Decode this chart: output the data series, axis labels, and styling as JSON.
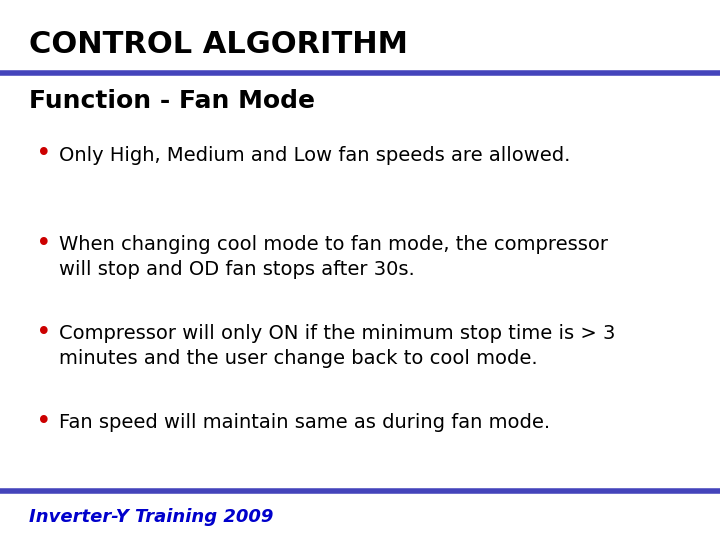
{
  "title": "CONTROL ALGORITHM",
  "subtitle": "Function - Fan Mode",
  "bullets": [
    "Only High, Medium and Low fan speeds are allowed.",
    "When changing cool mode to fan mode, the compressor\nwill stop and OD fan stops after 30s.",
    "Compressor will only ON if the minimum stop time is > 3\nminutes and the user change back to cool mode.",
    "Fan speed will maintain same as during fan mode."
  ],
  "footer": "Inverter-Y Training 2009",
  "bg_color": "#ffffff",
  "title_color": "#000000",
  "subtitle_color": "#000000",
  "bullet_color": "#000000",
  "bullet_dot_color": "#cc0000",
  "footer_color": "#0000cc",
  "header_bar_color": "#4444bb",
  "footer_bar_color": "#4444bb",
  "title_fontsize": 22,
  "subtitle_fontsize": 18,
  "bullet_fontsize": 14,
  "footer_fontsize": 13
}
